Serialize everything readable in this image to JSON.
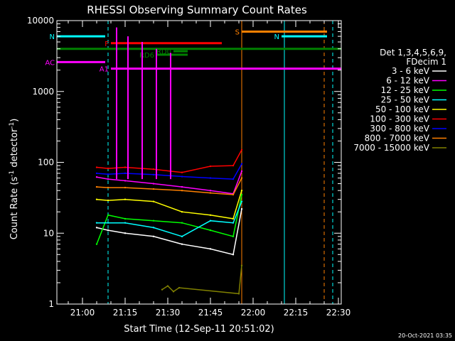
{
  "chart_data": {
    "type": "line",
    "title": "RHESSI Observing Summary Count Rates",
    "xlabel": "Start Time (12-Sep-11 20:51:02)",
    "ylabel_main": "Count Rate (s",
    "ylabel_sup1": "-1",
    "ylabel_mid": " detector",
    "ylabel_sup2": "-1",
    "ylabel_end": ")",
    "y_scale": "log",
    "ylim": [
      1,
      10000
    ],
    "xlim": [
      "20:51",
      "22:31"
    ],
    "x_ticks": [
      "21:00",
      "21:15",
      "21:30",
      "21:45",
      "22:00",
      "22:15",
      "22:30"
    ],
    "y_ticks": [
      {
        "value": 1,
        "label": "1"
      },
      {
        "value": 10,
        "label": "10"
      },
      {
        "value": 100,
        "label": "100"
      },
      {
        "value": 1000,
        "label": "1000"
      },
      {
        "value": 10000,
        "label": "10000"
      }
    ],
    "legend": {
      "placement": "right",
      "header": [
        "Det 1,3,4,5,6,9,",
        "FDecim 1"
      ],
      "entries": [
        "3 - 6 keV",
        "6 - 12 keV",
        "12 - 25 keV",
        "25 - 50 keV",
        "50 - 100 keV",
        "100 - 300 keV",
        "300 - 800 keV",
        "800 - 7000 keV",
        "7000 - 15000 keV"
      ]
    },
    "series_colors": [
      "#ffffff",
      "#ff00ff",
      "#00ff00",
      "#00ffff",
      "#ffff00",
      "#ff0000",
      "#0000ff",
      "#ff8000",
      "#808000"
    ],
    "series": [
      {
        "name": "3 - 6 keV",
        "x": [
          "21:05",
          "21:09",
          "21:15",
          "21:25",
          "21:35",
          "21:45",
          "21:53",
          "21:56"
        ],
        "values": [
          12,
          11,
          10,
          9,
          7,
          6,
          5,
          22
        ]
      },
      {
        "name": "6 - 12 keV",
        "x": [
          "21:05",
          "21:09",
          "21:15",
          "21:25",
          "21:35",
          "21:45",
          "21:53",
          "21:56"
        ],
        "values": [
          62,
          58,
          55,
          50,
          45,
          40,
          36,
          75
        ]
      },
      {
        "name": "12 - 25 keV",
        "x": [
          "21:05",
          "21:09",
          "21:15",
          "21:25",
          "21:35",
          "21:45",
          "21:53",
          "21:56"
        ],
        "values": [
          7,
          18,
          16,
          15,
          14,
          11,
          9,
          35
        ]
      },
      {
        "name": "25 - 50 keV",
        "x": [
          "21:05",
          "21:09",
          "21:15",
          "21:25",
          "21:35",
          "21:45",
          "21:53",
          "21:56"
        ],
        "values": [
          14,
          14,
          14,
          12,
          9,
          15,
          14,
          28
        ]
      },
      {
        "name": "50 - 100 keV",
        "x": [
          "21:05",
          "21:09",
          "21:15",
          "21:25",
          "21:35",
          "21:45",
          "21:53",
          "21:56"
        ],
        "values": [
          30,
          29,
          30,
          28,
          20,
          18,
          16,
          40
        ]
      },
      {
        "name": "100 - 300 keV",
        "x": [
          "21:05",
          "21:09",
          "21:15",
          "21:25",
          "21:35",
          "21:45",
          "21:53",
          "21:56"
        ],
        "values": [
          85,
          82,
          85,
          80,
          72,
          88,
          90,
          150
        ]
      },
      {
        "name": "300 - 800 keV",
        "x": [
          "21:05",
          "21:09",
          "21:15",
          "21:25",
          "21:35",
          "21:45",
          "21:53",
          "21:56"
        ],
        "values": [
          70,
          68,
          70,
          67,
          63,
          60,
          58,
          95
        ]
      },
      {
        "name": "800 - 7000 keV",
        "x": [
          "21:05",
          "21:09",
          "21:15",
          "21:25",
          "21:35",
          "21:45",
          "21:53",
          "21:56"
        ],
        "values": [
          45,
          44,
          44,
          42,
          40,
          37,
          35,
          60
        ]
      },
      {
        "name": "7000 - 15000 keV",
        "x": [
          "21:28",
          "21:30",
          "21:32",
          "21:34",
          "21:55",
          "21:56"
        ],
        "values": [
          1.6,
          1.8,
          1.5,
          1.7,
          1.4,
          3.5
        ]
      }
    ],
    "spikes": [
      {
        "series": "6 - 12 keV",
        "x": [
          "21:12",
          "21:16",
          "21:21",
          "21:26",
          "21:31"
        ],
        "values": [
          8000,
          6000,
          5000,
          4000,
          3500
        ]
      }
    ],
    "flag_bars": [
      {
        "label": "N",
        "color": "#00ffff",
        "x0": "20:51",
        "x1": "21:08",
        "level": 6000
      },
      {
        "label": "N",
        "color": "#00ffff",
        "x0": "22:10",
        "x1": "22:26",
        "level": 6000
      },
      {
        "label": "S",
        "color": "#ff8000",
        "x0": "21:56",
        "x1": "22:26",
        "level": 7000
      },
      {
        "label": "F",
        "color": "#ff0000",
        "x0": "21:10",
        "x1": "21:49",
        "level": 4800
      },
      {
        "label": "",
        "color": "#008000",
        "x0": "20:51",
        "x1": "22:31",
        "level": 4000
      },
      {
        "label": "RD6",
        "color": "#008000",
        "x0": "21:26",
        "x1": "21:37",
        "level": 3300
      },
      {
        "label": "RD0",
        "color": "#008000",
        "x0": "21:32",
        "x1": "21:37",
        "level": 3700
      },
      {
        "label": "AC",
        "color": "#ff00ff",
        "x0": "20:51",
        "x1": "21:08",
        "level": 2600
      },
      {
        "label": "A1",
        "color": "#ff00ff",
        "x0": "21:10",
        "x1": "22:31",
        "level": 2100
      }
    ],
    "vertical_markers": [
      {
        "x": "20:51",
        "color": "#00ffff",
        "dashed": false
      },
      {
        "x": "21:09",
        "color": "#00ffff",
        "dashed": true
      },
      {
        "x": "21:56",
        "color": "#ff8000",
        "dashed": false
      },
      {
        "x": "22:11",
        "color": "#00ffff",
        "dashed": false
      },
      {
        "x": "22:25",
        "color": "#ff8000",
        "dashed": true
      },
      {
        "x": "22:28",
        "color": "#00ffff",
        "dashed": true
      }
    ],
    "footer_date": "20-Oct-2021 03:35"
  }
}
